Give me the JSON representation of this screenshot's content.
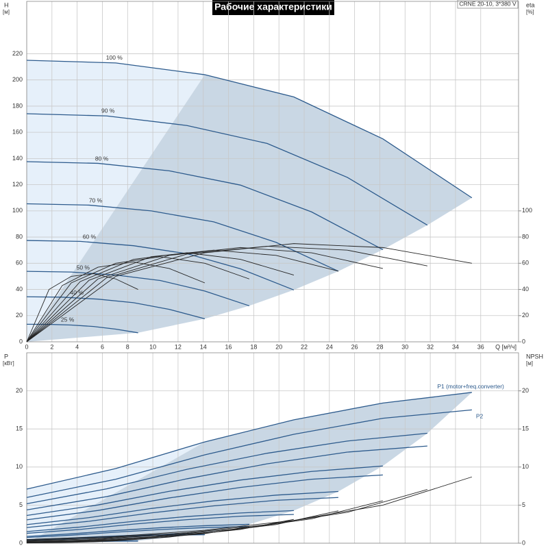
{
  "title": "Рабочие характеристики",
  "model": "CRNE 20-10, 3*380 V",
  "xlabel": "Q [м³/ч]",
  "chart_data": [
    {
      "type": "line",
      "ylabel": "H",
      "yunit": "[м]",
      "y2label": "eta",
      "y2unit": "[%]",
      "xlim": [
        0,
        39
      ],
      "ylim": [
        0,
        260
      ],
      "y2lim": [
        0,
        260
      ],
      "grid": true,
      "xticks": [
        0,
        2,
        4,
        6,
        8,
        10,
        12,
        14,
        16,
        18,
        20,
        22,
        24,
        26,
        28,
        30,
        32,
        34,
        36
      ],
      "yticks": [
        0,
        20,
        40,
        60,
        80,
        100,
        120,
        140,
        160,
        180,
        200,
        220
      ],
      "y2ticks": [
        0,
        20,
        40,
        60,
        80,
        100
      ],
      "series": [
        {
          "name": "100 %",
          "color": "#2c5a8c",
          "x": [
            0,
            7.06,
            14.12,
            21.18,
            28.24,
            35.3
          ],
          "values": [
            215,
            213,
            204,
            187,
            155,
            110
          ]
        },
        {
          "name": "90 %",
          "color": "#2c5a8c",
          "x": [
            0,
            6.35,
            12.71,
            19.06,
            25.42,
            31.77
          ],
          "values": [
            174.2,
            172.5,
            165.2,
            151.5,
            125.6,
            89.1
          ]
        },
        {
          "name": "80 %",
          "color": "#2c5a8c",
          "x": [
            0,
            5.65,
            11.3,
            16.94,
            22.59,
            28.24
          ],
          "values": [
            137.6,
            136.3,
            130.6,
            119.7,
            99.2,
            70.4
          ]
        },
        {
          "name": "70 %",
          "color": "#2c5a8c",
          "x": [
            0,
            4.94,
            9.88,
            14.83,
            19.77,
            24.71
          ],
          "values": [
            105.4,
            104.4,
            100,
            91.6,
            76,
            53.9
          ]
        },
        {
          "name": "60 %",
          "color": "#2c5a8c",
          "x": [
            0,
            4.24,
            8.47,
            12.71,
            16.94,
            21.18
          ],
          "values": [
            77.4,
            76.7,
            73.4,
            67.3,
            55.8,
            39.6
          ]
        },
        {
          "name": "50 %",
          "color": "#2c5a8c",
          "x": [
            0,
            3.53,
            7.06,
            10.59,
            14.12,
            17.65
          ],
          "values": [
            53.8,
            53.3,
            51,
            46.8,
            38.8,
            27.5
          ]
        },
        {
          "name": "40 %",
          "color": "#2c5a8c",
          "x": [
            0,
            2.82,
            5.65,
            8.47,
            11.3,
            14.12
          ],
          "values": [
            34.4,
            34.1,
            32.6,
            29.9,
            24.8,
            17.6
          ]
        },
        {
          "name": "25 %",
          "color": "#2c5a8c",
          "x": [
            0,
            1.77,
            3.53,
            5.3,
            7.06,
            8.83
          ],
          "values": [
            13.4,
            13.3,
            12.8,
            11.7,
            9.7,
            6.9
          ]
        },
        {
          "axis": "y2",
          "color": "#222",
          "x": [
            0,
            7.06,
            14.12,
            21.18,
            28.24,
            35.3
          ],
          "values": [
            0,
            50,
            68,
            75,
            72,
            60
          ]
        },
        {
          "axis": "y2",
          "color": "#222",
          "x": [
            0,
            6.35,
            12.71,
            19.06,
            25.42,
            31.77
          ],
          "values": [
            0,
            49,
            67,
            73,
            70,
            58
          ]
        },
        {
          "axis": "y2",
          "color": "#222",
          "x": [
            0,
            5.65,
            11.3,
            16.94,
            22.59,
            28.24
          ],
          "values": [
            0,
            48,
            66,
            72,
            68,
            56
          ]
        },
        {
          "axis": "y2",
          "color": "#222",
          "x": [
            0,
            4.94,
            9.88,
            14.83,
            19.77,
            24.71
          ],
          "values": [
            0,
            47,
            65,
            70,
            66,
            54
          ]
        },
        {
          "axis": "y2",
          "color": "#222",
          "x": [
            0,
            4.24,
            8.47,
            12.71,
            16.94,
            21.18
          ],
          "values": [
            0,
            46,
            63,
            68,
            63,
            51
          ]
        },
        {
          "axis": "y2",
          "color": "#222",
          "x": [
            0,
            3.53,
            7.06,
            10.59,
            14.12,
            17.65
          ],
          "values": [
            0,
            45,
            60,
            65,
            60,
            48
          ]
        },
        {
          "axis": "y2",
          "color": "#222",
          "x": [
            0,
            2.82,
            5.65,
            8.47,
            11.3,
            14.12
          ],
          "values": [
            0,
            43,
            57,
            61,
            56,
            45
          ]
        },
        {
          "axis": "y2",
          "color": "#222",
          "x": [
            0,
            1.77,
            3.53,
            5.3,
            7.06,
            8.83
          ],
          "values": [
            0,
            40,
            50,
            52,
            48,
            40
          ]
        }
      ]
    },
    {
      "type": "line",
      "ylabel": "P",
      "yunit": "[кВт]",
      "y2label": "NPSH",
      "y2unit": "[м]",
      "xlim": [
        0,
        39
      ],
      "ylim": [
        0,
        25
      ],
      "y2lim": [
        0,
        25
      ],
      "grid": true,
      "yticks": [
        0,
        5,
        10,
        15,
        20
      ],
      "y2ticks": [
        0,
        5,
        10,
        15,
        20
      ],
      "series": [
        {
          "name": "P1 (motor+freq.converter)",
          "color": "#2c5a8c",
          "x": [
            0,
            7.06,
            14.12,
            21.18,
            28.24,
            35.3
          ],
          "values": [
            7.1,
            9.8,
            13.3,
            16.2,
            18.4,
            19.8
          ]
        },
        {
          "color": "#2c5a8c",
          "x": [
            0,
            6.35,
            12.71,
            19.06,
            25.42,
            31.77
          ],
          "values": [
            5.18,
            7.14,
            9.7,
            11.81,
            13.41,
            14.43
          ]
        },
        {
          "color": "#2c5a8c",
          "x": [
            0,
            5.65,
            11.3,
            16.94,
            22.59,
            28.24
          ],
          "values": [
            3.64,
            5.02,
            6.81,
            8.29,
            9.42,
            10.14
          ]
        },
        {
          "color": "#2c5a8c",
          "x": [
            0,
            4.94,
            9.88,
            14.83,
            19.77,
            24.71
          ],
          "values": [
            2.44,
            3.36,
            4.56,
            5.56,
            6.31,
            6.79
          ]
        },
        {
          "color": "#2c5a8c",
          "x": [
            0,
            4.24,
            8.47,
            12.71,
            16.94,
            21.18
          ],
          "values": [
            1.53,
            2.12,
            2.87,
            3.5,
            3.97,
            4.28
          ]
        },
        {
          "color": "#2c5a8c",
          "x": [
            0,
            3.53,
            7.06,
            10.59,
            14.12,
            17.65
          ],
          "values": [
            0.89,
            1.23,
            1.66,
            2.03,
            2.3,
            2.48
          ]
        },
        {
          "color": "#2c5a8c",
          "x": [
            0,
            2.82,
            5.65,
            8.47,
            11.3,
            14.12
          ],
          "values": [
            0.45,
            0.63,
            0.85,
            1.04,
            1.18,
            1.27
          ]
        },
        {
          "color": "#2c5a8c",
          "x": [
            0,
            1.77,
            3.53,
            5.3,
            7.06,
            8.83
          ],
          "values": [
            0.11,
            0.15,
            0.21,
            0.25,
            0.29,
            0.31
          ]
        },
        {
          "name": "P2",
          "color": "#2c5a8c",
          "x": [
            0,
            7.06,
            14.12,
            21.18,
            28.24,
            35.3
          ],
          "values": [
            6.0,
            8.4,
            11.6,
            14.3,
            16.4,
            17.5
          ]
        },
        {
          "color": "#2c5a8c",
          "x": [
            0,
            6.35,
            12.71,
            19.06,
            25.42,
            31.77
          ],
          "values": [
            4.37,
            6.12,
            8.46,
            10.42,
            11.96,
            12.76
          ]
        },
        {
          "color": "#2c5a8c",
          "x": [
            0,
            5.65,
            11.3,
            16.94,
            22.59,
            28.24
          ],
          "values": [
            3.07,
            4.3,
            5.94,
            7.32,
            8.4,
            8.96
          ]
        },
        {
          "color": "#2c5a8c",
          "x": [
            0,
            4.94,
            9.88,
            14.83,
            19.77,
            24.71
          ],
          "values": [
            2.06,
            2.88,
            3.98,
            4.9,
            5.63,
            6
          ]
        },
        {
          "color": "#2c5a8c",
          "x": [
            0,
            4.24,
            8.47,
            12.71,
            16.94,
            21.18
          ],
          "values": [
            1.3,
            1.81,
            2.51,
            3.09,
            3.54,
            3.78
          ]
        },
        {
          "color": "#2c5a8c",
          "x": [
            0,
            3.53,
            7.06,
            10.59,
            14.12,
            17.65
          ],
          "values": [
            0.75,
            1.05,
            1.45,
            1.79,
            2.05,
            2.19
          ]
        },
        {
          "color": "#2c5a8c",
          "x": [
            0,
            2.82,
            5.65,
            8.47,
            11.3,
            14.12
          ],
          "values": [
            0.38,
            0.54,
            0.74,
            0.92,
            1.05,
            1.12
          ]
        },
        {
          "color": "#2c5a8c",
          "x": [
            0,
            1.77,
            3.53,
            5.3,
            7.06,
            8.83
          ],
          "values": [
            0.09,
            0.13,
            0.18,
            0.22,
            0.26,
            0.27
          ]
        },
        {
          "axis": "y2",
          "color": "#222",
          "x": [
            0,
            7.06,
            14.12,
            21.18,
            28.24,
            35.3
          ],
          "values": [
            0.5,
            0.9,
            1.7,
            3.0,
            5.0,
            8.7
          ]
        },
        {
          "axis": "y2",
          "color": "#222",
          "x": [
            0,
            6.35,
            12.71,
            19.06,
            25.42,
            31.77
          ],
          "values": [
            0.41,
            0.73,
            1.38,
            2.43,
            4.05,
            7.05
          ]
        },
        {
          "axis": "y2",
          "color": "#222",
          "x": [
            0,
            5.65,
            11.3,
            16.94,
            22.59,
            28.24
          ],
          "values": [
            0.32,
            0.58,
            1.09,
            1.92,
            3.2,
            5.57
          ]
        },
        {
          "axis": "y2",
          "color": "#222",
          "x": [
            0,
            4.94,
            9.88,
            14.83,
            19.77,
            24.71
          ],
          "values": [
            0.25,
            0.44,
            0.83,
            1.47,
            2.45,
            4.26
          ]
        },
        {
          "axis": "y2",
          "color": "#222",
          "x": [
            0,
            4.24,
            8.47,
            12.71,
            16.94,
            21.18
          ],
          "values": [
            0.18,
            0.32,
            0.61,
            1.08,
            1.8,
            3.13
          ]
        },
        {
          "axis": "y2",
          "color": "#222",
          "x": [
            0,
            3.53,
            7.06,
            10.59,
            14.12,
            17.65
          ],
          "values": [
            0.13,
            0.23,
            0.43,
            0.75,
            1.25,
            2.18
          ]
        },
        {
          "axis": "y2",
          "color": "#222",
          "x": [
            0,
            2.82,
            5.65,
            8.47,
            11.3,
            14.12
          ],
          "values": [
            0.08,
            0.14,
            0.27,
            0.48,
            0.8,
            1.39
          ]
        },
        {
          "axis": "y2",
          "color": "#222",
          "x": [
            0,
            1.77,
            3.53,
            5.3,
            7.06,
            8.83
          ],
          "values": [
            0.03,
            0.06,
            0.11,
            0.19,
            0.31,
            0.54
          ]
        }
      ]
    }
  ]
}
